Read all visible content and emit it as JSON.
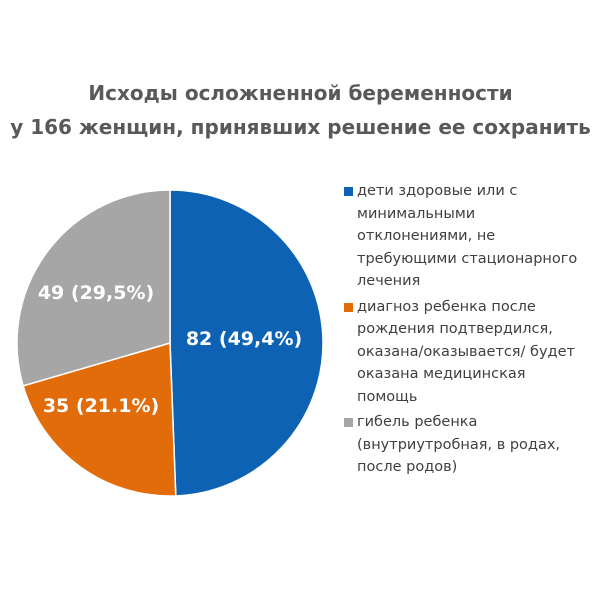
{
  "chart_data": {
    "type": "pie",
    "title": "Исходы осложненной беременности",
    "subtitle": "у 166 женщин, принявших решение ее сохранить",
    "total": 166,
    "slices": [
      {
        "name": "дети здоровые или с минимальными отклонениями, не требующими стационарного лечения",
        "value": 82,
        "label": "82 (49,4%)",
        "color": "#0E62B4"
      },
      {
        "name": "диагноз ребенка после рождения подтвердился, оказана/оказывается/ будет оказана медицинская помощь",
        "value": 35,
        "label": "35 (21.1%)",
        "color": "#E36C0A"
      },
      {
        "name": "гибель ребенка (внутриутробная, в родах, после родов)",
        "value": 49,
        "label": "49 (29,5%)",
        "color": "#A6A6A6"
      }
    ],
    "legend_position": "right"
  }
}
